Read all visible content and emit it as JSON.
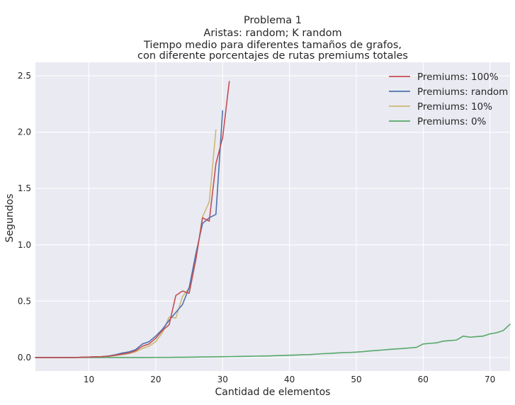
{
  "chart_data": {
    "type": "line",
    "title_lines": [
      "Problema 1",
      "Aristas: random;  K random",
      "Tiempo medio para diferentes tamaños de grafos,",
      "con diferente porcentajes de rutas premiums totales"
    ],
    "xlabel": "Cantidad de elementos",
    "ylabel": "Segundos",
    "xlim": [
      2,
      73
    ],
    "ylim": [
      -0.12,
      2.62
    ],
    "x_ticks": [
      10,
      20,
      30,
      40,
      50,
      60,
      70
    ],
    "y_ticks": [
      0.0,
      0.5,
      1.0,
      1.5,
      2.0,
      2.5
    ],
    "x_tick_labels": [
      "10",
      "20",
      "30",
      "40",
      "50",
      "60",
      "70"
    ],
    "y_tick_labels": [
      "0.0",
      "0.5",
      "1.0",
      "1.5",
      "2.0",
      "2.5"
    ],
    "grid": true,
    "legend_position": "top-right",
    "background": "#eaeaf2",
    "series": [
      {
        "name": "Premiums: 100%",
        "color": "#c44e52",
        "x": [
          2,
          3,
          4,
          5,
          6,
          7,
          8,
          9,
          10,
          11,
          12,
          13,
          14,
          15,
          16,
          17,
          18,
          19,
          20,
          21,
          22,
          23,
          24,
          25,
          26,
          27,
          28,
          29,
          30,
          31
        ],
        "y": [
          0.0,
          0.0,
          0.0,
          0.0,
          0.0,
          0.0,
          0.0,
          0.002,
          0.004,
          0.006,
          0.008,
          0.012,
          0.02,
          0.03,
          0.04,
          0.06,
          0.1,
          0.12,
          0.17,
          0.24,
          0.29,
          0.55,
          0.59,
          0.57,
          0.87,
          1.24,
          1.21,
          1.72,
          1.95,
          2.45
        ]
      },
      {
        "name": "Premiums: random",
        "color": "#4c72b0",
        "x": [
          2,
          3,
          4,
          5,
          6,
          7,
          8,
          9,
          10,
          11,
          12,
          13,
          14,
          15,
          16,
          17,
          18,
          19,
          20,
          21,
          22,
          23,
          24,
          25,
          26,
          27,
          28,
          29,
          30
        ],
        "y": [
          0.0,
          0.0,
          0.0,
          0.0,
          0.0,
          0.0,
          0.0,
          0.002,
          0.004,
          0.006,
          0.008,
          0.014,
          0.025,
          0.04,
          0.05,
          0.07,
          0.12,
          0.14,
          0.19,
          0.25,
          0.33,
          0.4,
          0.47,
          0.62,
          0.92,
          1.19,
          1.24,
          1.27,
          2.19
        ]
      },
      {
        "name": "Premiums: 10%",
        "color": "#ccb974",
        "x": [
          2,
          3,
          4,
          5,
          6,
          7,
          8,
          9,
          10,
          11,
          12,
          13,
          14,
          15,
          16,
          17,
          18,
          19,
          20,
          21,
          22,
          23,
          24,
          25,
          26,
          27,
          28,
          29
        ],
        "y": [
          0.0,
          0.0,
          0.0,
          0.0,
          0.0,
          0.0,
          0.0,
          0.002,
          0.004,
          0.006,
          0.008,
          0.01,
          0.018,
          0.025,
          0.035,
          0.05,
          0.08,
          0.1,
          0.14,
          0.22,
          0.36,
          0.35,
          0.54,
          0.62,
          0.87,
          1.25,
          1.38,
          2.02
        ]
      },
      {
        "name": "Premiums: 0%",
        "color": "#55a868",
        "x": [
          2,
          3,
          4,
          5,
          6,
          7,
          8,
          9,
          10,
          11,
          12,
          13,
          14,
          15,
          16,
          17,
          18,
          19,
          20,
          21,
          22,
          23,
          24,
          25,
          26,
          27,
          28,
          29,
          30,
          31,
          32,
          33,
          34,
          35,
          36,
          37,
          38,
          39,
          40,
          41,
          42,
          43,
          44,
          45,
          46,
          47,
          48,
          49,
          50,
          51,
          52,
          53,
          54,
          55,
          56,
          57,
          58,
          59,
          60,
          61,
          62,
          63,
          64,
          65,
          66,
          67,
          68,
          69,
          70,
          71,
          72,
          73
        ],
        "y": [
          0.0,
          0.0,
          0.0,
          0.0,
          0.0,
          0.0,
          0.0,
          0.0,
          0.0,
          0.0,
          0.0,
          0.0,
          0.0,
          0.0,
          0.0,
          0.0,
          0.0,
          0.0,
          0.001,
          0.001,
          0.001,
          0.002,
          0.002,
          0.003,
          0.004,
          0.005,
          0.005,
          0.006,
          0.007,
          0.008,
          0.009,
          0.01,
          0.011,
          0.012,
          0.013,
          0.014,
          0.016,
          0.018,
          0.02,
          0.022,
          0.025,
          0.026,
          0.03,
          0.034,
          0.036,
          0.04,
          0.043,
          0.045,
          0.048,
          0.052,
          0.058,
          0.062,
          0.067,
          0.072,
          0.076,
          0.08,
          0.085,
          0.09,
          0.12,
          0.125,
          0.13,
          0.145,
          0.15,
          0.155,
          0.19,
          0.18,
          0.185,
          0.19,
          0.21,
          0.22,
          0.24,
          0.295
        ]
      }
    ]
  }
}
